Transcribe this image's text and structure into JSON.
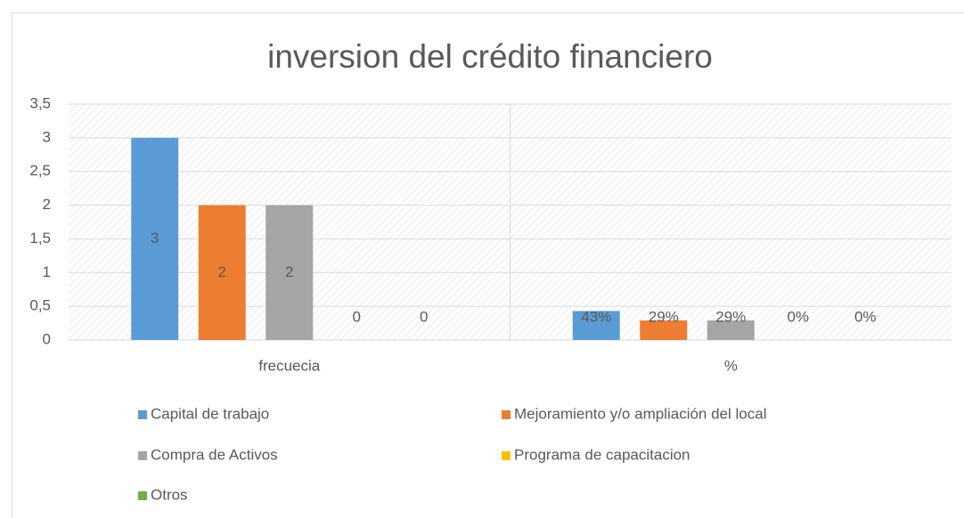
{
  "chart_data": {
    "type": "bar",
    "title": "inversion del crédito financiero",
    "categories": [
      "frecuecia",
      "%"
    ],
    "series": [
      {
        "name": "Capital de trabajo",
        "color": "#5b9bd5",
        "values": [
          3,
          0.43
        ],
        "value_labels": [
          "3",
          "43%"
        ]
      },
      {
        "name": "Mejoramiento y/o ampliación del local",
        "color": "#ed7d31",
        "values": [
          2,
          0.29
        ],
        "value_labels": [
          "2",
          "29%"
        ]
      },
      {
        "name": "Compra de Activos",
        "color": "#a5a5a5",
        "values": [
          2,
          0.29
        ],
        "value_labels": [
          "2",
          "29%"
        ]
      },
      {
        "name": "Programa de capacitacion",
        "color": "#ffc000",
        "values": [
          0,
          0
        ],
        "value_labels": [
          "0",
          "0%"
        ]
      },
      {
        "name": "Otros",
        "color": "#70ad47",
        "values": [
          0,
          0
        ],
        "value_labels": [
          "0",
          "0%"
        ]
      }
    ],
    "ylim": [
      0,
      3.5
    ],
    "yticks": [
      0,
      {
        "value": 0.5,
        "label": "0,5"
      },
      1,
      {
        "value": 1.5,
        "label": "1,5"
      },
      2,
      {
        "value": 2.5,
        "label": "2,5"
      },
      3,
      {
        "value": 3.5,
        "label": "3,5"
      }
    ],
    "grid": true
  }
}
